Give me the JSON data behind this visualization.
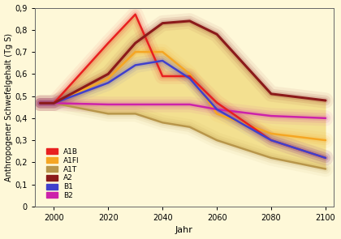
{
  "xlabel": "Jahr",
  "ylabel": "Anthropogener Schwefelgehalt (Tg S)",
  "xlim": [
    1993,
    2103
  ],
  "ylim": [
    0,
    0.9
  ],
  "yticks": [
    0,
    0.1,
    0.2,
    0.3,
    0.4,
    0.5,
    0.6,
    0.7,
    0.8,
    0.9
  ],
  "ytick_labels": [
    "0",
    "0,1",
    "0,2",
    "0,3",
    "0,4",
    "0,5",
    "0,6",
    "0,7",
    "0,8",
    "0,9"
  ],
  "xticks": [
    2000,
    2020,
    2040,
    2060,
    2080,
    2100
  ],
  "background_color": "#fef8d8",
  "series": {
    "A1B": {
      "color": "#e82020",
      "linewidth": 1.8,
      "zorder": 5,
      "x": [
        1995,
        2000,
        2020,
        2030,
        2040,
        2050,
        2060,
        2080,
        2100
      ],
      "y": [
        0.468,
        0.468,
        0.74,
        0.87,
        0.59,
        0.59,
        0.47,
        0.3,
        0.22
      ]
    },
    "A1FI": {
      "color": "#f5a623",
      "linewidth": 1.8,
      "zorder": 4,
      "x": [
        1995,
        2000,
        2020,
        2030,
        2040,
        2050,
        2060,
        2080,
        2100
      ],
      "y": [
        0.468,
        0.468,
        0.58,
        0.7,
        0.7,
        0.6,
        0.42,
        0.33,
        0.3
      ]
    },
    "A1T": {
      "color": "#b8964a",
      "linewidth": 1.8,
      "zorder": 3,
      "x": [
        1995,
        2000,
        2020,
        2030,
        2040,
        2050,
        2060,
        2080,
        2100
      ],
      "y": [
        0.468,
        0.468,
        0.42,
        0.42,
        0.38,
        0.36,
        0.3,
        0.22,
        0.17
      ]
    },
    "A2": {
      "color": "#8b1a1a",
      "linewidth": 2.2,
      "zorder": 6,
      "x": [
        1995,
        2000,
        2020,
        2030,
        2040,
        2050,
        2060,
        2080,
        2100
      ],
      "y": [
        0.468,
        0.468,
        0.6,
        0.74,
        0.83,
        0.84,
        0.78,
        0.51,
        0.48
      ]
    },
    "B1": {
      "color": "#4040cc",
      "linewidth": 1.8,
      "zorder": 5,
      "x": [
        1995,
        2000,
        2020,
        2030,
        2040,
        2050,
        2060,
        2080,
        2100
      ],
      "y": [
        0.468,
        0.468,
        0.56,
        0.64,
        0.66,
        0.58,
        0.44,
        0.3,
        0.22
      ]
    },
    "B2": {
      "color": "#cc22aa",
      "linewidth": 1.8,
      "zorder": 4,
      "x": [
        1995,
        2000,
        2020,
        2030,
        2040,
        2050,
        2060,
        2080,
        2100
      ],
      "y": [
        0.468,
        0.468,
        0.462,
        0.462,
        0.462,
        0.462,
        0.44,
        0.41,
        0.4
      ]
    }
  },
  "glow_color": "#d4a000",
  "glow_alpha_levels": [
    0.06,
    0.1,
    0.14
  ],
  "glow_lw_levels": [
    14,
    9,
    5
  ]
}
